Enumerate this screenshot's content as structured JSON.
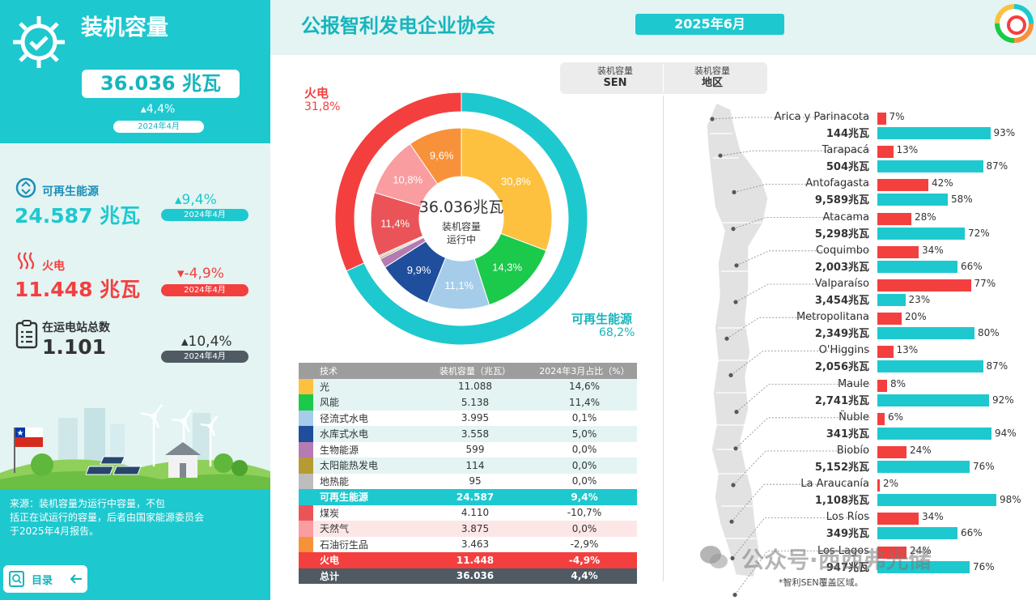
{
  "sidebar": {
    "title": "装机容量",
    "total_value": "36.036 兆瓦",
    "total_change": "▴4,4%",
    "total_period": "2024年4月",
    "renewable": {
      "label": "可再生能源",
      "value": "24.587 兆瓦",
      "change": "▴9,4%",
      "period": "2024年4月"
    },
    "thermal": {
      "label": "火电",
      "value": "11.448 兆瓦",
      "change": "▾-4,9%",
      "period": "2024年4月"
    },
    "stations": {
      "label": "在运电站总数",
      "value": "1.101",
      "change": "▴10,4%",
      "period": "2024年4月"
    },
    "source_lines": [
      "来源：装机容量为运行中容量，不包",
      "括正在试运行的容量，后者由国家能源委员会",
      "于2025年4月报告。"
    ],
    "menu_label": "目录"
  },
  "header": {
    "org_title": "公报智利发电企业协会",
    "date": "2025年6月"
  },
  "tabs": [
    {
      "line1": "装机容量",
      "line2": "SEN"
    },
    {
      "line1": "装机容量",
      "line2": "地区"
    }
  ],
  "donut": {
    "center_value": "36.036兆瓦",
    "center_line1": "装机容量",
    "center_line2": "运行中",
    "thermal_label": "火电",
    "thermal_pct": "31,8%",
    "renewable_label": "可再生能源",
    "renewable_pct": "68,2%"
  },
  "chart_data": [
    {
      "type": "pie",
      "variant": "double-donut",
      "outer_ring": [
        {
          "name": "可再生能源",
          "value": 68.2,
          "color": "#1ec8cf"
        },
        {
          "name": "火电",
          "value": 31.8,
          "color": "#f43f3f"
        }
      ],
      "inner_ring": [
        {
          "name": "光伏",
          "value": 30.8,
          "label": "30,8%",
          "color": "#fdc13f"
        },
        {
          "name": "风能",
          "value": 14.3,
          "label": "14,3%",
          "color": "#1bc94b"
        },
        {
          "name": "径流式水电",
          "value": 11.1,
          "label": "11,1%",
          "color": "#a5cdea"
        },
        {
          "name": "水库式水电",
          "value": 9.9,
          "label": "9,9%",
          "color": "#1f4e9c"
        },
        {
          "name": "生物能源",
          "value": 1.7,
          "label": "",
          "color": "#b57bb2"
        },
        {
          "name": "太阳能热发电",
          "value": 0.3,
          "label": "",
          "color": "#b59b32"
        },
        {
          "name": "地热能",
          "value": 0.3,
          "label": "",
          "color": "#bdbdbd"
        },
        {
          "name": "煤炭",
          "value": 11.4,
          "label": "11,4%",
          "color": "#ea5458"
        },
        {
          "name": "天然气",
          "value": 10.8,
          "label": "10,8%",
          "color": "#fa9da0"
        },
        {
          "name": "石油衍生品",
          "value": 9.6,
          "label": "9,6%",
          "color": "#f7923a"
        }
      ]
    },
    {
      "type": "table",
      "columns": [
        "技术",
        "装机容量（兆瓦）",
        "2024年3月占比（%）"
      ],
      "rows": [
        {
          "name": "光",
          "capacity": "11.088",
          "change": "14,6%",
          "color": "#fdc13f",
          "style": "alt"
        },
        {
          "name": "风能",
          "capacity": "5.138",
          "change": "11,4%",
          "color": "#1bc94b",
          "style": "alt"
        },
        {
          "name": "径流式水电",
          "capacity": "3.995",
          "change": "0,1%",
          "color": "#a5cdea",
          "style": ""
        },
        {
          "name": "水库式水电",
          "capacity": "3.558",
          "change": "5,0%",
          "color": "#1f4e9c",
          "style": "alt"
        },
        {
          "name": "生物能源",
          "capacity": "599",
          "change": "0,0%",
          "color": "#b57bb2",
          "style": ""
        },
        {
          "name": "太阳能热发电",
          "capacity": "114",
          "change": "0,0%",
          "color": "#b59b32",
          "style": "alt"
        },
        {
          "name": "地热能",
          "capacity": "95",
          "change": "0,0%",
          "color": "#bdbdbd",
          "style": ""
        },
        {
          "name": "可再生能源",
          "capacity": "24.587",
          "change": "9,4%",
          "color": "#1ec8cf",
          "style": "ren"
        },
        {
          "name": "煤炭",
          "capacity": "4.110",
          "change": "-10,7%",
          "color": "#ea5458",
          "style": ""
        },
        {
          "name": "天然气",
          "capacity": "3.875",
          "change": "0,0%",
          "color": "#fa9da0",
          "style": "fosalt"
        },
        {
          "name": "石油衍生品",
          "capacity": "3.463",
          "change": "-2,9%",
          "color": "#f7923a",
          "style": ""
        },
        {
          "name": "火电",
          "capacity": "11.448",
          "change": "-4,9%",
          "color": "#f43f3f",
          "style": "fos"
        },
        {
          "name": "总计",
          "capacity": "36.036",
          "change": "4,4%",
          "color": "#4f5a63",
          "style": "tot"
        }
      ]
    },
    {
      "type": "bar",
      "orientation": "horizontal",
      "stacked_pairs": true,
      "series": [
        {
          "name": "火电",
          "color": "#f43f3f"
        },
        {
          "name": "可再生能源",
          "color": "#1ec8cf"
        }
      ],
      "regions": [
        {
          "name": "Arica y Parinacota",
          "capacity": "144兆瓦",
          "thermal": 7,
          "renewable": 93
        },
        {
          "name": "Tarapacá",
          "capacity": "504兆瓦",
          "thermal": 13,
          "renewable": 87
        },
        {
          "name": "Antofagasta",
          "capacity": "9,589兆瓦",
          "thermal": 42,
          "renewable": 58
        },
        {
          "name": "Atacama",
          "capacity": "5,298兆瓦",
          "thermal": 28,
          "renewable": 72
        },
        {
          "name": "Coquimbo",
          "capacity": "2,003兆瓦",
          "thermal": 34,
          "renewable": 66
        },
        {
          "name": "Valparaíso",
          "capacity": "3,454兆瓦",
          "thermal": 77,
          "renewable": 23
        },
        {
          "name": "Metropolitana",
          "capacity": "2,349兆瓦",
          "thermal": 20,
          "renewable": 80
        },
        {
          "name": "O'Higgins",
          "capacity": "2,056兆瓦",
          "thermal": 13,
          "renewable": 87
        },
        {
          "name": "Maule",
          "capacity": "2,741兆瓦",
          "thermal": 8,
          "renewable": 92
        },
        {
          "name": "Ñuble",
          "capacity": "341兆瓦",
          "thermal": 6,
          "renewable": 94
        },
        {
          "name": "Biobío",
          "capacity": "5,152兆瓦",
          "thermal": 24,
          "renewable": 76
        },
        {
          "name": "La Araucanía",
          "capacity": "1,108兆瓦",
          "thermal": 2,
          "renewable": 98
        },
        {
          "name": "Los Ríos",
          "capacity": "349兆瓦",
          "thermal": 34,
          "renewable": 66
        },
        {
          "name": "Los Lagos",
          "capacity": "947兆瓦",
          "thermal": 24,
          "renewable": 76
        }
      ],
      "note": "*智利SEN覆盖区域。"
    }
  ],
  "watermark": "公众号·西西弗光储",
  "colors": {
    "accent": "#1ec8cf",
    "thermal": "#f43f3f",
    "dark": "#4f5a63"
  }
}
